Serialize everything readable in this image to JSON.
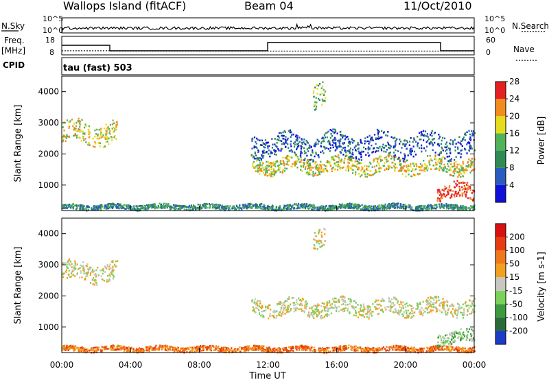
{
  "header": {
    "title": "Wallops Island (fitACF)",
    "beam": "Beam 04",
    "date": "11/Oct/2010"
  },
  "strip_labels": {
    "nsky": "N.Sky",
    "nsearch": "N.Search",
    "freq_top": "Freq.",
    "freq_unit": "[MHz]",
    "nave": "Nave",
    "cpid": "CPID",
    "cpid_value": "tau (fast) 503"
  },
  "strip_ticks": {
    "nsky_left": [
      "10^5",
      "10^0"
    ],
    "nsky_right": [
      "10^5",
      "10^0"
    ],
    "freq_left": [
      "18",
      "8"
    ],
    "nave_right": [
      "60",
      "0"
    ]
  },
  "x_ticks": [
    "00:00",
    "04:00",
    "08:00",
    "12:00",
    "16:00",
    "20:00",
    "00:00"
  ],
  "xlabel": "Time UT",
  "chart_data": [
    {
      "type": "heatmap",
      "name": "power",
      "xlabel": "Time UT",
      "ylabel": "Slant Range [km]",
      "x_range_hours": [
        0,
        24
      ],
      "ylim": [
        180,
        4500
      ],
      "y_ticks": [
        1000,
        2000,
        3000,
        4000
      ],
      "colorbar": {
        "label": "Power [dB]",
        "ticks": [
          "4",
          "8",
          "12",
          "16",
          "20",
          "24",
          "28"
        ],
        "colors": [
          "#1010d8",
          "#2a5cc0",
          "#2f8a55",
          "#50b25a",
          "#e6dc1e",
          "#f28c1e",
          "#e62020"
        ]
      },
      "regions": [
        {
          "from_hour": 0.0,
          "to_hour": 3.2,
          "y_center_km": 2700,
          "y_width_km": 700,
          "level": 4
        },
        {
          "from_hour": 0.0,
          "to_hour": 24.0,
          "y_center_km": 320,
          "y_width_km": 160,
          "level": 2
        },
        {
          "from_hour": 11.0,
          "to_hour": 24.0,
          "y_center_km": 1650,
          "y_width_km": 500,
          "level": 4
        },
        {
          "from_hour": 11.0,
          "to_hour": 24.0,
          "y_center_km": 2300,
          "y_width_km": 700,
          "level": 1
        },
        {
          "from_hour": 14.6,
          "to_hour": 15.3,
          "y_center_km": 3800,
          "y_width_km": 800,
          "level": 3
        },
        {
          "from_hour": 21.8,
          "to_hour": 24.0,
          "y_center_km": 800,
          "y_width_km": 500,
          "level": 6
        }
      ]
    },
    {
      "type": "heatmap",
      "name": "velocity",
      "xlabel": "Time UT",
      "ylabel": "Slant Range [km]",
      "x_range_hours": [
        0,
        24
      ],
      "ylim": [
        180,
        4500
      ],
      "y_ticks": [
        1000,
        2000,
        3000,
        4000
      ],
      "colorbar": {
        "label": "Velocity [m s-1]",
        "ticks": [
          "200",
          "100",
          "50",
          "15",
          "-15",
          "-50",
          "-100",
          "-200"
        ],
        "colors": [
          "#1a3cc8",
          "#2a6a3a",
          "#3c9a3c",
          "#7ad25a",
          "#c8c8c0",
          "#f2a020",
          "#f07818",
          "#e83c10",
          "#d81010"
        ]
      },
      "regions": [
        {
          "from_hour": 0.0,
          "to_hour": 3.2,
          "y_center_km": 2800,
          "y_width_km": 600,
          "level": 4
        },
        {
          "from_hour": 0.0,
          "to_hour": 24.0,
          "y_center_km": 320,
          "y_width_km": 160,
          "level": 6
        },
        {
          "from_hour": 11.0,
          "to_hour": 24.0,
          "y_center_km": 1650,
          "y_width_km": 500,
          "level": 4
        },
        {
          "from_hour": 14.6,
          "to_hour": 15.3,
          "y_center_km": 3900,
          "y_width_km": 600,
          "level": 4
        },
        {
          "from_hour": 21.8,
          "to_hour": 24.0,
          "y_center_km": 700,
          "y_width_km": 400,
          "level": 3
        }
      ]
    }
  ]
}
